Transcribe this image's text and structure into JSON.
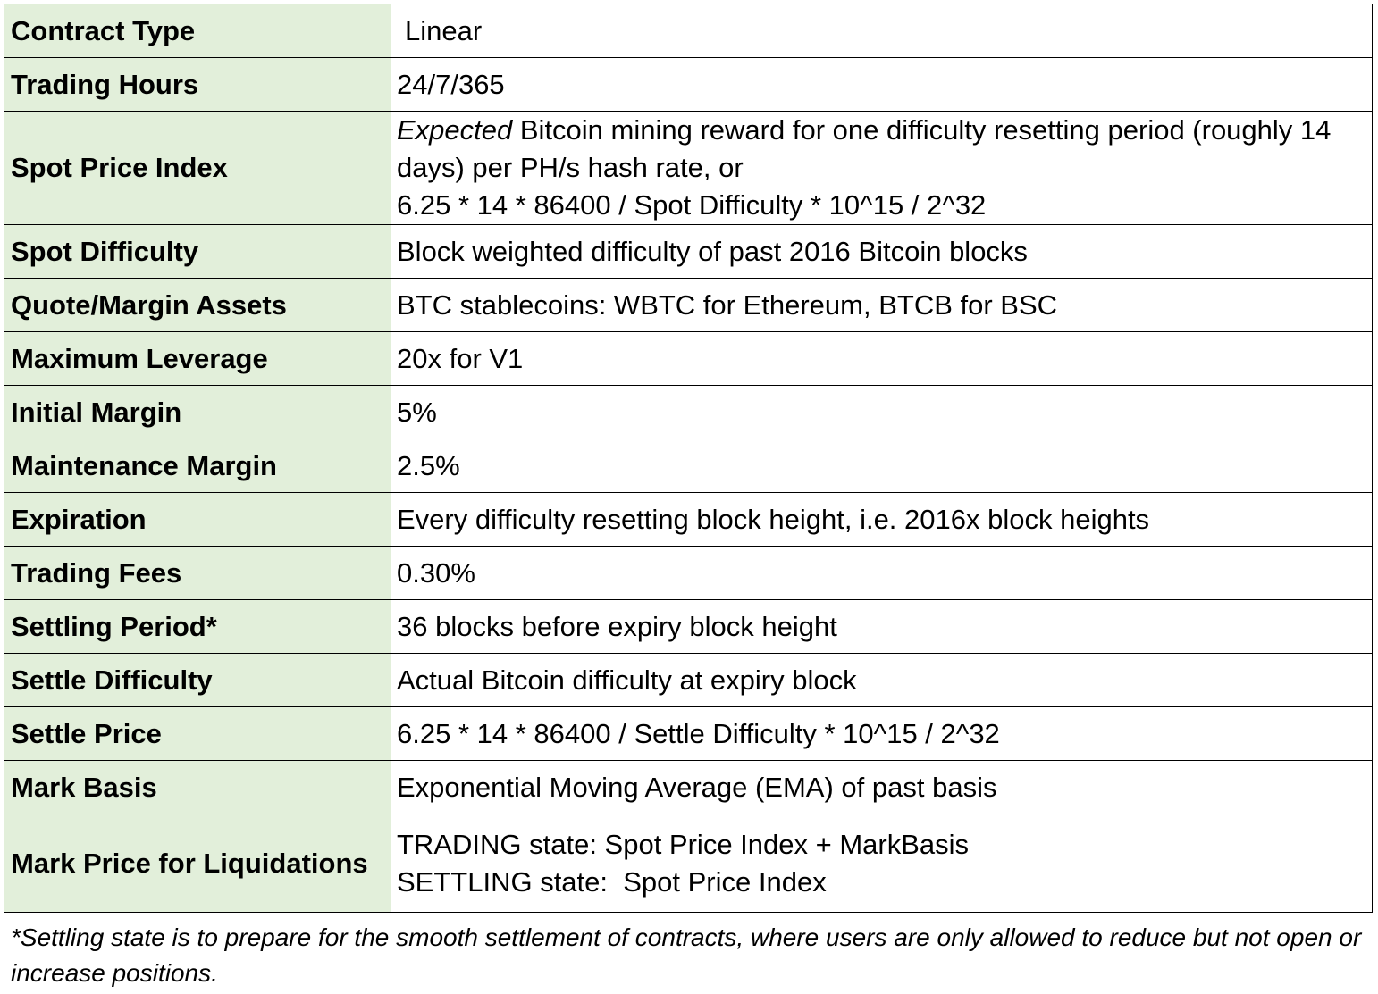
{
  "rows": [
    {
      "label": "Contract Type",
      "value": "Linear"
    },
    {
      "label": "Trading Hours",
      "value": "24/7/365"
    },
    {
      "label": "Spot Price Index",
      "value_em": "Expected",
      "value_rest": " Bitcoin mining reward for one difficulty resetting period (roughly 14 days) per PH/s hash rate, or",
      "value_line2": "6.25 * 14 * 86400 / Spot Difficulty * 10^15 / 2^32"
    },
    {
      "label": "Spot Difficulty",
      "value": "Block weighted difficulty of past 2016 Bitcoin blocks"
    },
    {
      "label": "Quote/Margin Assets",
      "value": "BTC stablecoins: WBTC for Ethereum, BTCB for BSC"
    },
    {
      "label": "Maximum Leverage",
      "value": "20x for V1"
    },
    {
      "label": "Initial Margin",
      "value": "5%"
    },
    {
      "label": "Maintenance Margin",
      "value": "2.5%"
    },
    {
      "label": "Expiration",
      "value": "Every difficulty resetting block height, i.e. 2016x block heights"
    },
    {
      "label": "Trading Fees",
      "value": "0.30%"
    },
    {
      "label": "Settling Period*",
      "value": "36 blocks before expiry block height"
    },
    {
      "label": "Settle Difficulty",
      "value": "Actual Bitcoin difficulty at expiry block"
    },
    {
      "label": "Settle Price",
      "value": "6.25 * 14 * 86400 / Settle Difficulty * 10^15 / 2^32"
    },
    {
      "label": "Mark Basis",
      "value": "Exponential Moving Average (EMA) of past basis"
    },
    {
      "label": "Mark Price for Liquidations",
      "value_line1": "TRADING state: Spot Price Index + MarkBasis",
      "value_line2": "SETTLING state:  Spot Price Index"
    }
  ],
  "footnote": "*Settling state is to prepare for the smooth settlement of contracts, where users are only allowed to reduce but not open or increase positions.",
  "colors": {
    "label_background": "#e2efda",
    "border": "#000000"
  }
}
